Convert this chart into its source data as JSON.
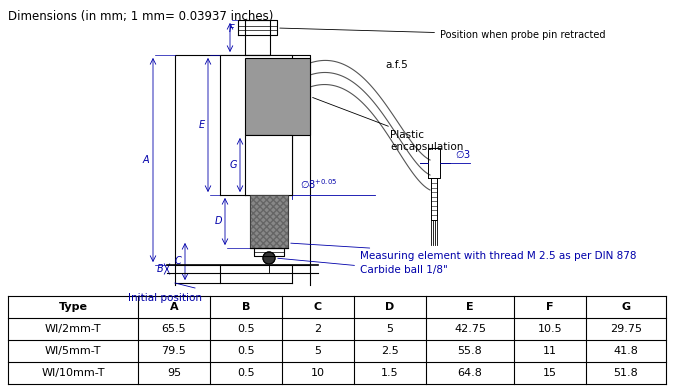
{
  "title": "Dimensions (in mm; 1 mm= 0.03937 inches)",
  "table_headers": [
    "Type",
    "A",
    "B",
    "C",
    "D",
    "E",
    "F",
    "G"
  ],
  "table_data": [
    [
      "WI/2mm-T",
      "65.5",
      "0.5",
      "2",
      "5",
      "42.75",
      "10.5",
      "29.75"
    ],
    [
      "WI/5mm-T",
      "79.5",
      "0.5",
      "5",
      "2.5",
      "55.8",
      "11",
      "41.8"
    ],
    [
      "WI/10mm-T",
      "95",
      "0.5",
      "10",
      "1.5",
      "64.8",
      "15",
      "51.8"
    ]
  ],
  "annotation_probe_pin": "Position when probe pin retracted",
  "annotation_af5": "a.f.5",
  "annotation_plastic": "Plastic\nencapsulation",
  "annotation_measuring": "Measuring element with thread M 2.5 as per DIN 878",
  "annotation_carbide": "Carbide ball 1/8\"",
  "annotation_initial": "Initial position",
  "bg_color": "#ffffff",
  "line_color": "#000000",
  "dim_color": "#0000aa",
  "gray_fill": "#999999",
  "gray_fill2": "#bbbbbb",
  "table_line_color": "#000000"
}
